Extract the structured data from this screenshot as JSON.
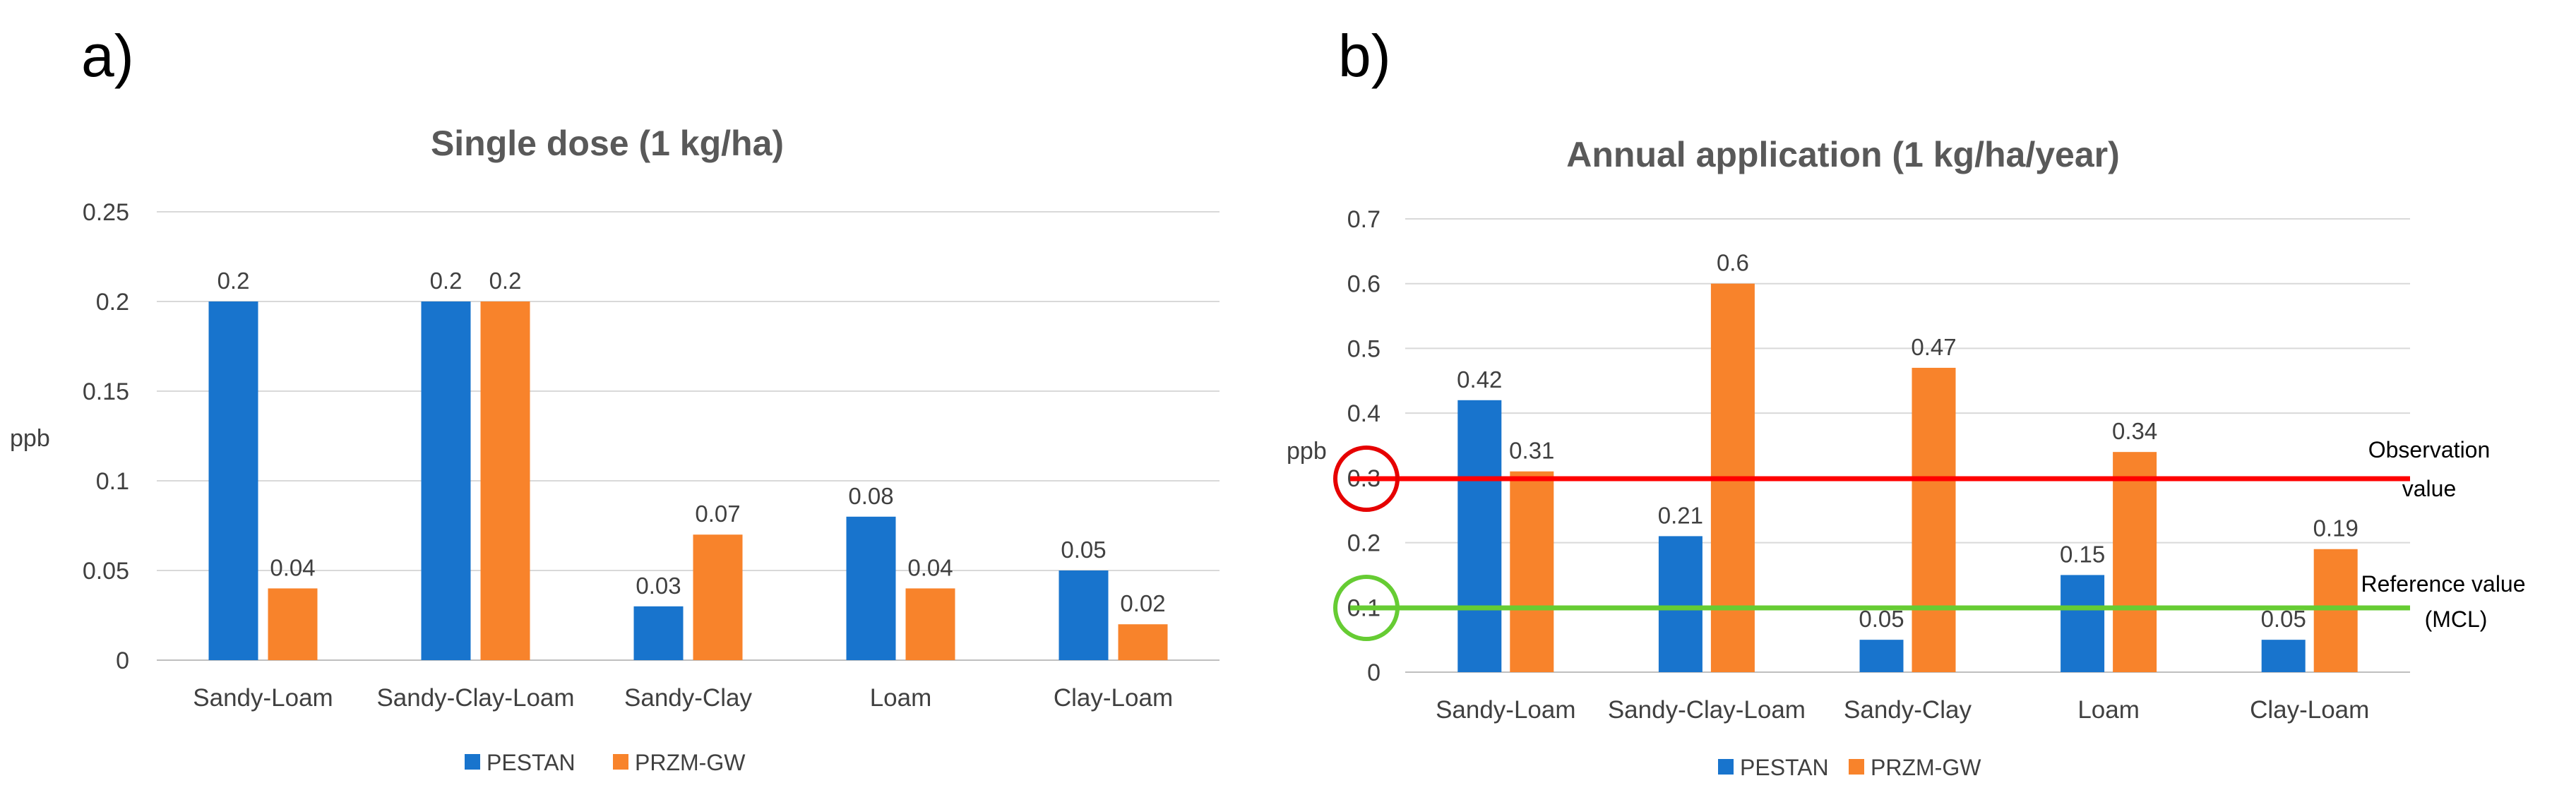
{
  "panels": {
    "a_label": "a)",
    "b_label": "b)"
  },
  "legend": {
    "pestan": "PESTAN",
    "przm": "PRZM-GW"
  },
  "colors": {
    "pestan": "#1874cd",
    "przm": "#f8832b",
    "grid": "#d9d9d9",
    "text": "#404040",
    "title": "#595959",
    "observation_line": "#ff0000",
    "reference_line": "#66cc33"
  },
  "chart_data": [
    {
      "type": "bar",
      "title": "Single dose (1 kg/ha)",
      "ylabel": "ppb",
      "xlabel": "",
      "categories": [
        "Sandy-Loam",
        "Sandy-Clay-Loam",
        "Sandy-Clay",
        "Loam",
        "Clay-Loam"
      ],
      "series": [
        {
          "name": "PESTAN",
          "values": [
            0.2,
            0.2,
            0.03,
            0.08,
            0.05
          ],
          "labels": [
            "0.2",
            "0.2",
            "0.03",
            "0.08",
            "0.05"
          ]
        },
        {
          "name": "PRZM-GW",
          "values": [
            0.04,
            0.2,
            0.07,
            0.04,
            0.02
          ],
          "labels": [
            "0.04",
            "0.2",
            "0.07",
            "0.04",
            "0.02"
          ]
        }
      ],
      "ylim": [
        0,
        0.25
      ],
      "yticks": [
        "0",
        "0.05",
        "0.1",
        "0.15",
        "0.2",
        "0.25"
      ],
      "grid": true,
      "legend_position": "bottom"
    },
    {
      "type": "bar",
      "title": "Annual application (1 kg/ha/year)",
      "ylabel": "ppb",
      "xlabel": "",
      "categories": [
        "Sandy-Loam",
        "Sandy-Clay-Loam",
        "Sandy-Clay",
        "Loam",
        "Clay-Loam"
      ],
      "series": [
        {
          "name": "PESTAN",
          "values": [
            0.42,
            0.21,
            0.05,
            0.15,
            0.05
          ],
          "labels": [
            "0.42",
            "0.21",
            "0.05",
            "0.15",
            "0.05"
          ]
        },
        {
          "name": "PRZM-GW",
          "values": [
            0.31,
            0.6,
            0.47,
            0.34,
            0.19
          ],
          "labels": [
            "0.31",
            "0.6",
            "0.47",
            "0.34",
            "0.19"
          ]
        }
      ],
      "ylim": [
        0,
        0.7
      ],
      "yticks": [
        "0",
        "0.1",
        "0.2",
        "0.3",
        "0.4",
        "0.5",
        "0.6",
        "0.7"
      ],
      "grid": true,
      "legend_position": "bottom",
      "reference_lines": [
        {
          "value": 0.3,
          "label_line1": "Observation",
          "label_line2": "value",
          "circled_tick": "0.3"
        },
        {
          "value": 0.1,
          "label_line1": "Reference value",
          "label_line2": "(MCL)",
          "circled_tick": "0.1"
        }
      ]
    }
  ]
}
